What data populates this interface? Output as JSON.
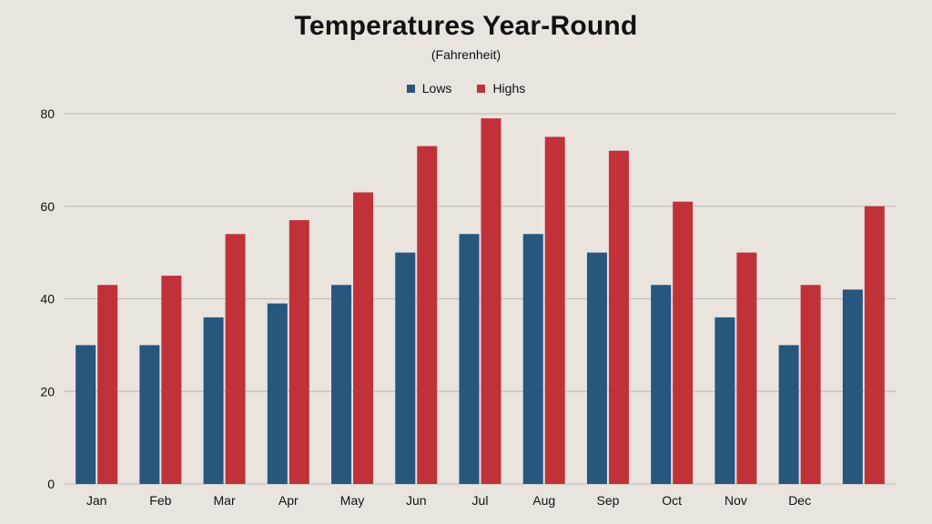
{
  "title": "Temperatures Year-Round",
  "subtitle": "(Fahrenheit)",
  "colors": {
    "background": "#e9e4de",
    "lows": "#27567f",
    "highs": "#c1313a",
    "grid": "#bdb7b1"
  },
  "chart_data": {
    "type": "bar",
    "title": "Temperatures Year-Round",
    "subtitle": "(Fahrenheit)",
    "categories": [
      "Jan",
      "Feb",
      "Mar",
      "Apr",
      "May",
      "Jun",
      "Jul",
      "Aug",
      "Sep",
      "Oct",
      "Nov",
      "Dec",
      ""
    ],
    "series": [
      {
        "name": "Lows",
        "color": "#27567f",
        "values": [
          30,
          30,
          36,
          39,
          43,
          50,
          54,
          54,
          50,
          43,
          36,
          30,
          42
        ]
      },
      {
        "name": "Highs",
        "color": "#c1313a",
        "values": [
          43,
          45,
          54,
          57,
          63,
          73,
          79,
          75,
          72,
          61,
          50,
          43,
          60
        ]
      }
    ],
    "yticks": [
      0,
      20,
      40,
      60,
      80
    ],
    "ylim": [
      0,
      80
    ],
    "grid": true,
    "legend": "top-center"
  }
}
